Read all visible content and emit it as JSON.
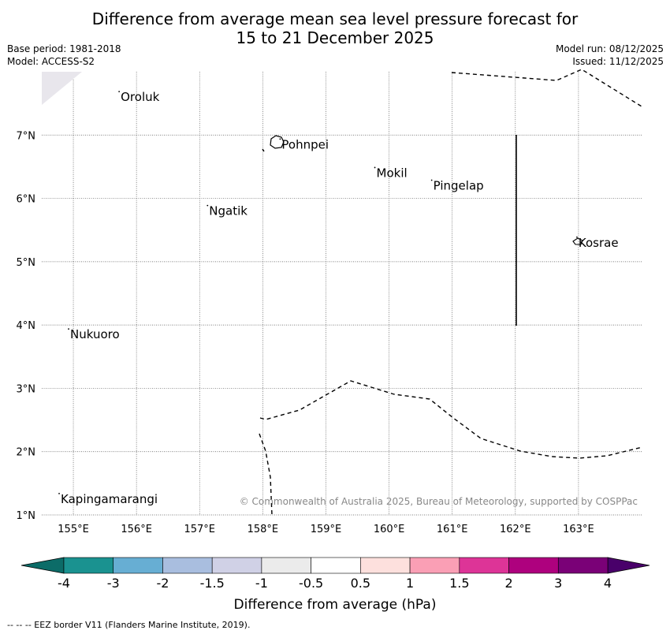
{
  "title": {
    "line1": "Difference from average mean sea level pressure forecast for",
    "line2": "15 to 21 December 2025"
  },
  "meta": {
    "base_period": "Base period: 1981-2018",
    "model": "Model: ACCESS-S2",
    "model_run": "Model run: 08/12/2025",
    "issued": "Issued: 11/12/2025"
  },
  "map": {
    "lon_range": [
      154.5,
      164.0
    ],
    "lat_range": [
      1.0,
      8.0
    ],
    "lon_ticks": [
      "155°E",
      "156°E",
      "157°E",
      "158°E",
      "159°E",
      "160°E",
      "161°E",
      "162°E",
      "163°E"
    ],
    "lat_ticks": [
      "7°N",
      "6°N",
      "5°N",
      "4°N",
      "3°N",
      "2°N",
      "1°N"
    ],
    "places": [
      {
        "name": "Oroluk",
        "lon": 155.75,
        "lat": 7.6
      },
      {
        "name": "Pohnpei",
        "lon": 158.3,
        "lat": 6.85
      },
      {
        "name": "Mokil",
        "lon": 159.8,
        "lat": 6.4
      },
      {
        "name": "Pingelap",
        "lon": 160.7,
        "lat": 6.2
      },
      {
        "name": "Ngatik",
        "lon": 157.15,
        "lat": 5.8
      },
      {
        "name": "Kosrae",
        "lon": 163.0,
        "lat": 5.3
      },
      {
        "name": "Nukuoro",
        "lon": 154.95,
        "lat": 3.85
      },
      {
        "name": "Kapingamarangi",
        "lon": 154.8,
        "lat": 1.25
      }
    ],
    "copyright": "© Commonwealth of Australia 2025, Bureau of Meteorology, supported by COSPPac"
  },
  "colorbar": {
    "label": "Difference from average (hPa)",
    "tick_labels": [
      "-4",
      "-3",
      "-2",
      "-1.5",
      "-1",
      "-0.5",
      "0.5",
      "1",
      "1.5",
      "2",
      "3",
      "4"
    ],
    "colors": [
      "#1a9290",
      "#67aed3",
      "#a9bedf",
      "#d0d1e6",
      "#ebebeb",
      "#ffffff",
      "#fde0dd",
      "#fa9fb5",
      "#dd3497",
      "#ae017e",
      "#7a0177"
    ],
    "under_color": "#0c6c68",
    "over_color": "#49006a"
  },
  "footnote": "--  --  -- EEZ border V11 (Flanders Marine Institute, 2019)."
}
